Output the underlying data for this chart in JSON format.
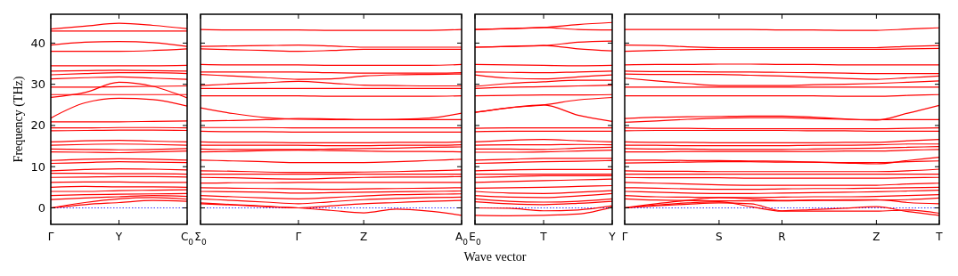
{
  "chart_data": [
    {
      "type": "line",
      "ylabel": "Frequency (THz)",
      "color": "#ff0000",
      "categories": [
        "Γ",
        null,
        "Y",
        null,
        "C$_{0}$"
      ],
      "ylim": [
        -4,
        47
      ],
      "yticks": [
        0,
        10,
        20,
        30,
        40
      ],
      "ref_lines": [
        {
          "axis": "y",
          "value": 0,
          "color": "#0000ff",
          "line_style": "dotted"
        }
      ],
      "line_style": "solid",
      "series": [
        {
          "values": [
            43.4,
            44.1,
            44.8,
            44.3,
            43.5
          ]
        },
        {
          "values": [
            42.9,
            42.9,
            42.9,
            42.9,
            42.9
          ]
        },
        {
          "values": [
            39.5,
            40.2,
            40.4,
            40.1,
            39.2
          ]
        },
        {
          "values": [
            38,
            38,
            38,
            38.2,
            38.6
          ]
        },
        {
          "values": [
            34.5,
            34.5,
            34.5,
            34.5,
            34.6
          ]
        },
        {
          "values": [
            33.2,
            33.3,
            33.4,
            33.3,
            33.2
          ]
        },
        {
          "values": [
            32.3,
            32.6,
            32.8,
            32.8,
            32.6
          ]
        },
        {
          "values": [
            31.3,
            31.6,
            31.8,
            31.5,
            31.2
          ]
        },
        {
          "values": [
            29.3,
            29.3,
            29.4,
            29.5,
            29.6
          ]
        },
        {
          "values": [
            26.8,
            28,
            30.5,
            29.5,
            26.7
          ]
        },
        {
          "values": [
            27.5,
            27.5,
            27.5,
            27.5,
            27.5
          ]
        },
        {
          "values": [
            21.8,
            25.5,
            26.6,
            26.3,
            24.7
          ]
        },
        {
          "values": [
            20.9,
            20.9,
            20.9,
            21,
            21.1
          ]
        },
        {
          "values": [
            19.4,
            19.4,
            19.5,
            19.5,
            19.4
          ]
        },
        {
          "values": [
            18.7,
            18.8,
            18.9,
            18.9,
            18.8
          ]
        },
        {
          "values": [
            16,
            16.3,
            16.4,
            16.2,
            16
          ]
        },
        {
          "values": [
            15.2,
            15.4,
            15.5,
            15.4,
            15.2
          ]
        },
        {
          "values": [
            14.3,
            14.2,
            14.1,
            14.2,
            14.4
          ]
        },
        {
          "values": [
            13.6,
            13.5,
            13.4,
            13.6,
            13.8
          ]
        },
        {
          "values": [
            11.5,
            11.8,
            11.9,
            11.8,
            11.6
          ]
        },
        {
          "values": [
            10.8,
            11,
            11.2,
            11.1,
            11
          ]
        },
        {
          "values": [
            9,
            9.3,
            9.5,
            9.4,
            9.2
          ]
        },
        {
          "values": [
            8.4,
            8.4,
            8.3,
            8.3,
            8.2
          ]
        },
        {
          "values": [
            7.4,
            7.5,
            7.6,
            7.6,
            7.5
          ]
        },
        {
          "values": [
            6.2,
            6.3,
            6.3,
            6.2,
            6.2
          ]
        },
        {
          "values": [
            5,
            5.2,
            5.1,
            5.1,
            5
          ]
        },
        {
          "values": [
            4,
            4,
            4.2,
            4.3,
            4.4
          ]
        },
        {
          "values": [
            3,
            3.2,
            3.3,
            3.4,
            3.5
          ]
        },
        {
          "values": [
            2,
            2.4,
            2.7,
            3,
            2.8
          ]
        },
        {
          "values": [
            0,
            1.3,
            2.2,
            2.5,
            2.1
          ]
        },
        {
          "values": [
            0,
            0.8,
            1.3,
            1.8,
            1.6
          ]
        }
      ]
    },
    {
      "type": "line",
      "color": "#ff0000",
      "categories": [
        "Σ$_{0}$",
        null,
        null,
        "Γ",
        null,
        "Z",
        null,
        null,
        "A$_{0}$"
      ],
      "ylim": [
        -4,
        47
      ],
      "yticks": [
        0,
        10,
        20,
        30,
        40
      ],
      "tick_labels": "x",
      "ref_lines": [
        {
          "axis": "y",
          "value": 0,
          "color": "#0000ff",
          "line_style": "dotted"
        }
      ],
      "line_style": "solid",
      "series": [
        {
          "values": [
            43.3,
            43.2,
            43.2,
            43.2,
            43.1,
            43.1,
            43.1,
            43.1,
            43.3
          ]
        },
        {
          "values": [
            39.2,
            39.3,
            39.4,
            39.5,
            39.3,
            39,
            39,
            39,
            39
          ]
        },
        {
          "values": [
            38.6,
            38.4,
            38.2,
            38,
            38.2,
            38.5,
            38.5,
            38.5,
            38.5
          ]
        },
        {
          "values": [
            34.8,
            34.7,
            34.7,
            34.7,
            34.6,
            34.6,
            34.6,
            34.6,
            34.8
          ]
        },
        {
          "values": [
            33,
            33,
            33,
            33,
            32.8,
            32.7,
            32.7,
            32.7,
            32.8
          ]
        },
        {
          "values": [
            32.4,
            32,
            31.6,
            31.2,
            31.3,
            32,
            32.3,
            32.4,
            32.5
          ]
        },
        {
          "values": [
            29.7,
            30.1,
            30.4,
            30.7,
            30.3,
            29.8,
            29.7,
            29.6,
            29.6
          ]
        },
        {
          "values": [
            29,
            29,
            29,
            29,
            29,
            29,
            29,
            29,
            29
          ]
        },
        {
          "values": [
            27.2,
            27.2,
            27.2,
            27.2,
            27.1,
            27.1,
            27.1,
            27.1,
            27.2
          ]
        },
        {
          "values": [
            24.3,
            22.9,
            21.9,
            21.5,
            21.4,
            21.4,
            21.5,
            21.8,
            23
          ]
        },
        {
          "values": [
            21.1,
            21.2,
            21.4,
            21.7,
            21.6,
            21.4,
            21.4,
            21.4,
            21.4
          ]
        },
        {
          "values": [
            19.5,
            19.5,
            19.5,
            19.4,
            19.4,
            19.4,
            19.4,
            19.4,
            19.4
          ]
        },
        {
          "values": [
            18.6,
            18.5,
            18.5,
            18.4,
            18.4,
            18.4,
            18.4,
            18.4,
            18.4
          ]
        },
        {
          "values": [
            16,
            15.9,
            15.9,
            15.8,
            15.8,
            15.8,
            15.9,
            15.9,
            16
          ]
        },
        {
          "values": [
            15.2,
            15.2,
            15.2,
            15.2,
            15.1,
            15.1,
            15.2,
            15.2,
            15.3
          ]
        },
        {
          "values": [
            14.3,
            14.2,
            14.2,
            14.2,
            14.3,
            14.4,
            14.5,
            14.7,
            14.8
          ]
        },
        {
          "values": [
            13.6,
            13.7,
            13.9,
            14,
            13.9,
            13.8,
            13.7,
            13.7,
            13.6
          ]
        },
        {
          "values": [
            11.6,
            11.4,
            11.2,
            11,
            11,
            11,
            11.2,
            11.5,
            11.8
          ]
        },
        {
          "values": [
            9,
            8.9,
            8.7,
            8.6,
            8.6,
            8.7,
            8.8,
            9,
            9.2
          ]
        },
        {
          "values": [
            8.2,
            8.2,
            8.2,
            8.2,
            8.2,
            8.2,
            8.2,
            8.2,
            8.2
          ]
        },
        {
          "values": [
            7.4,
            7.3,
            7.1,
            7,
            7.2,
            7.4,
            7.5,
            7.5,
            7.6
          ]
        },
        {
          "values": [
            6,
            6.1,
            6.1,
            6.2,
            6.2,
            6.2,
            6.2,
            6.2,
            6.2
          ]
        },
        {
          "values": [
            4.9,
            4.8,
            4.7,
            4.6,
            4.5,
            4.6,
            4.7,
            4.8,
            4.9
          ]
        },
        {
          "values": [
            4,
            3.9,
            3.8,
            3.6,
            3.7,
            3.8,
            3.9,
            4,
            4.1
          ]
        },
        {
          "values": [
            3,
            2.7,
            2.4,
            2.2,
            2.5,
            2.9,
            3.2,
            3.3,
            3.4
          ]
        },
        {
          "values": [
            2.2,
            1.8,
            1.4,
            1,
            1.5,
            2,
            2.3,
            2.5,
            2.6
          ]
        },
        {
          "values": [
            1.2,
            0.8,
            0.4,
            0,
            0.5,
            1,
            1.3,
            1.6,
            1.8
          ]
        },
        {
          "values": [
            1,
            0.7,
            0.3,
            0,
            -0.6,
            -1.2,
            -0.3,
            -0.8,
            -1.8
          ]
        }
      ]
    },
    {
      "type": "line",
      "xlabel": "Wave vector",
      "color": "#ff0000",
      "categories": [
        "E$_{0}$",
        null,
        "T",
        null,
        "Y"
      ],
      "ylim": [
        -4,
        47
      ],
      "yticks": [
        0,
        10,
        20,
        30,
        40
      ],
      "tick_labels": "x",
      "ref_lines": [
        {
          "axis": "y",
          "value": 0,
          "color": "#0000ff",
          "line_style": "dotted"
        }
      ],
      "line_style": "solid",
      "series": [
        {
          "values": [
            43.3,
            43.5,
            43.8,
            44.5,
            45
          ]
        },
        {
          "values": [
            43.3,
            43.5,
            43.8,
            43.3,
            43.2
          ]
        },
        {
          "values": [
            39,
            39.2,
            39.4,
            40.2,
            40.5
          ]
        },
        {
          "values": [
            39,
            39.2,
            39.4,
            38.6,
            38.1
          ]
        },
        {
          "values": [
            34.8,
            34.7,
            34.6,
            34.5,
            34.6
          ]
        },
        {
          "values": [
            33,
            32.9,
            32.8,
            33,
            33.2
          ]
        },
        {
          "values": [
            32.3,
            31.5,
            31.3,
            31.8,
            32.3
          ]
        },
        {
          "values": [
            29.5,
            30.2,
            30.6,
            31,
            31
          ]
        },
        {
          "values": [
            29,
            29.3,
            29.4,
            29.6,
            29.8
          ]
        },
        {
          "values": [
            27.2,
            27.3,
            27.4,
            27.4,
            27.5
          ]
        },
        {
          "values": [
            23.2,
            24.3,
            25,
            26.2,
            26.8
          ]
        },
        {
          "values": [
            23.2,
            24.3,
            25,
            22.5,
            21
          ]
        },
        {
          "values": [
            19.3,
            19.4,
            19.4,
            19.4,
            19.4
          ]
        },
        {
          "values": [
            18.5,
            18.6,
            18.6,
            18.6,
            18.6
          ]
        },
        {
          "values": [
            16,
            16.4,
            16.6,
            16.3,
            16
          ]
        },
        {
          "values": [
            15.2,
            15.3,
            15.3,
            15.4,
            15.3
          ]
        },
        {
          "values": [
            14.3,
            14.3,
            14.2,
            14.5,
            14.7
          ]
        },
        {
          "values": [
            13.5,
            13.5,
            13.6,
            13.8,
            14
          ]
        },
        {
          "values": [
            11.6,
            11.8,
            12,
            12,
            12
          ]
        },
        {
          "values": [
            10.8,
            11,
            11.2,
            11.3,
            11.5
          ]
        },
        {
          "values": [
            9,
            9.2,
            9.3,
            9.3,
            9.3
          ]
        },
        {
          "values": [
            8.2,
            8.2,
            8.2,
            8.2,
            8.2
          ]
        },
        {
          "values": [
            7.4,
            7.6,
            7.8,
            7.8,
            7.8
          ]
        },
        {
          "values": [
            6.2,
            6.4,
            6.6,
            6.8,
            7
          ]
        },
        {
          "values": [
            4.8,
            4.9,
            5,
            5.2,
            5.4
          ]
        },
        {
          "values": [
            4,
            3.6,
            3.5,
            3.8,
            4.2
          ]
        },
        {
          "values": [
            3,
            2.6,
            2.5,
            2.9,
            3.5
          ]
        },
        {
          "values": [
            2.2,
            1.6,
            1.4,
            1.6,
            2.2
          ]
        },
        {
          "values": [
            1.5,
            1,
            0.8,
            1.1,
            1.6
          ]
        },
        {
          "values": [
            0,
            -0.1,
            -0.7,
            -0.5,
            0.5
          ]
        },
        {
          "values": [
            -1.8,
            -1.9,
            -1.8,
            -1.5,
            0.2
          ]
        }
      ]
    },
    {
      "type": "line",
      "color": "#ff0000",
      "categories": [
        "Γ",
        null,
        null,
        "S",
        null,
        "R",
        null,
        null,
        "Z",
        null,
        "T"
      ],
      "ylim": [
        -4,
        47
      ],
      "yticks": [
        0,
        10,
        20,
        30,
        40
      ],
      "tick_labels": "x",
      "ref_lines": [
        {
          "axis": "y",
          "value": 0,
          "color": "#0000ff",
          "line_style": "dotted"
        }
      ],
      "line_style": "solid",
      "series": [
        {
          "values": [
            43.3,
            43.3,
            43.3,
            43.3,
            43.3,
            43.2,
            43.2,
            43.1,
            43.1,
            43.4,
            43.7
          ]
        },
        {
          "values": [
            39.5,
            39.4,
            39.1,
            38.9,
            38.9,
            38.9,
            38.9,
            38.9,
            38.9,
            39.2,
            39.4
          ]
        },
        {
          "values": [
            38,
            38.2,
            38.4,
            38.5,
            38.5,
            38.5,
            38.5,
            38.5,
            38.5,
            38.6,
            38.7
          ]
        },
        {
          "values": [
            34.7,
            34.8,
            34.8,
            34.9,
            34.9,
            34.8,
            34.8,
            34.7,
            34.7,
            34.7,
            34.7
          ]
        },
        {
          "values": [
            33.2,
            33.1,
            33.1,
            33,
            33,
            32.9,
            32.8,
            32.7,
            32.6,
            32.6,
            32.6
          ]
        },
        {
          "values": [
            32.5,
            32.4,
            32.4,
            32.4,
            32.2,
            32,
            31.7,
            31.4,
            31.2,
            31.6,
            32
          ]
        },
        {
          "values": [
            31.5,
            30.8,
            30.2,
            29.7,
            29.7,
            29.7,
            29.9,
            30,
            30.2,
            30.5,
            30.8
          ]
        },
        {
          "values": [
            29.3,
            29.3,
            29.3,
            29.3,
            29.3,
            29.3,
            29.3,
            29.3,
            29.3,
            29.3,
            29.3
          ]
        },
        {
          "values": [
            27.2,
            27.2,
            27.2,
            27.2,
            27.2,
            27.2,
            27.2,
            27.1,
            27.1,
            27.3,
            27.5
          ]
        },
        {
          "values": [
            21.7,
            22,
            22.1,
            22.2,
            22.3,
            22.3,
            22,
            21.6,
            21.3,
            23,
            24.9
          ]
        },
        {
          "values": [
            20.8,
            21.1,
            21.5,
            21.8,
            21.9,
            21.9,
            21.7,
            21.5,
            21.4,
            21.4,
            21.4
          ]
        },
        {
          "values": [
            19.4,
            19.3,
            19.3,
            19.2,
            19.2,
            19.2,
            19.2,
            19.2,
            19.2,
            19.3,
            19.4
          ]
        },
        {
          "values": [
            18.7,
            18.8,
            18.8,
            18.8,
            18.8,
            18.8,
            18.7,
            18.7,
            18.6,
            18.6,
            18.6
          ]
        },
        {
          "values": [
            16,
            15.9,
            15.9,
            15.8,
            15.8,
            15.8,
            15.8,
            15.9,
            15.9,
            16.3,
            16.6
          ]
        },
        {
          "values": [
            15.2,
            15.2,
            15.1,
            15.1,
            15.1,
            15.1,
            15.2,
            15.2,
            15.3,
            15.5,
            15.5
          ]
        },
        {
          "values": [
            14.4,
            14.3,
            14.3,
            14.2,
            14.2,
            14.2,
            14.3,
            14.4,
            14.5,
            14.7,
            14.9
          ]
        },
        {
          "values": [
            13.6,
            13.6,
            13.7,
            13.7,
            13.7,
            13.7,
            13.7,
            13.8,
            13.8,
            14,
            14.2
          ]
        },
        {
          "values": [
            11.6,
            11.6,
            11.5,
            11.5,
            11.4,
            11.3,
            11.1,
            10.9,
            10.7,
            11.5,
            12.3
          ]
        },
        {
          "values": [
            10.9,
            11,
            11.1,
            11.2,
            11.2,
            11.1,
            11.1,
            11,
            11,
            11.2,
            11.4
          ]
        },
        {
          "values": [
            9,
            8.9,
            8.9,
            8.8,
            8.8,
            8.8,
            8.8,
            8.8,
            8.8,
            9,
            9.4
          ]
        },
        {
          "values": [
            8.2,
            8.2,
            8.2,
            8.2,
            8.2,
            8.2,
            8.2,
            8.2,
            8.2,
            8.2,
            8.2
          ]
        },
        {
          "values": [
            7.4,
            7.3,
            7.3,
            7.3,
            7.2,
            7.2,
            7.2,
            7.2,
            7.2,
            7.3,
            7.4
          ]
        },
        {
          "values": [
            6.2,
            6,
            5.8,
            5.6,
            5.5,
            5.5,
            5.5,
            5.5,
            5.5,
            5.8,
            6
          ]
        },
        {
          "values": [
            4.9,
            4.8,
            4.6,
            4.5,
            4.5,
            4.6,
            4.7,
            4.7,
            4.8,
            4.9,
            5
          ]
        },
        {
          "values": [
            4,
            3.8,
            3.6,
            3.5,
            3.5,
            3.6,
            3.7,
            3.8,
            3.9,
            4.1,
            4.3
          ]
        },
        {
          "values": [
            3,
            2.7,
            2.6,
            2.5,
            2.5,
            2.6,
            2.7,
            2.7,
            2.8,
            3,
            3.2
          ]
        },
        {
          "values": [
            2.2,
            1.9,
            1.8,
            1.7,
            1.7,
            1.7,
            1.8,
            1.8,
            1.9,
            2,
            2.4
          ]
        },
        {
          "values": [
            0,
            1,
            1.8,
            2.5,
            2.2,
            1.8,
            1.9,
            2,
            2,
            1.3,
            1
          ]
        },
        {
          "values": [
            0,
            0.7,
            1.2,
            1.5,
            0.3,
            -0.8,
            -0.8,
            -0.8,
            -0.8,
            -0.5,
            -1.3
          ]
        },
        {
          "values": [
            0,
            0.5,
            0.9,
            1.2,
            1,
            -0.7,
            -0.4,
            -0.1,
            0.3,
            -0.9,
            -1.8
          ]
        }
      ]
    }
  ]
}
